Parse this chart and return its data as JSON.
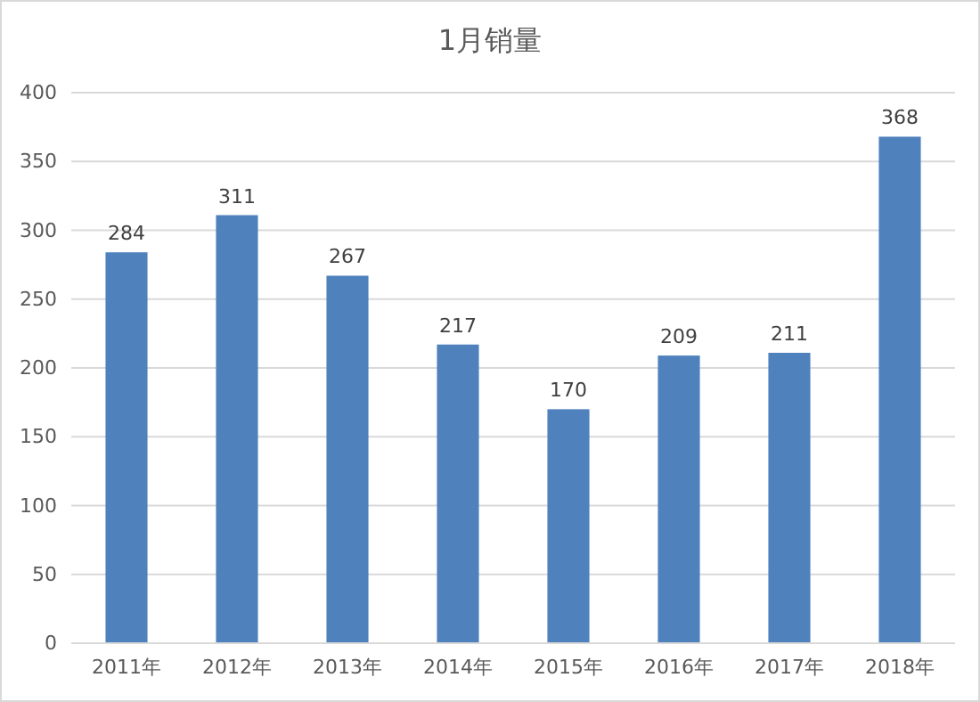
{
  "chart_data": {
    "type": "bar",
    "title": "1月销量",
    "categories": [
      "2011年",
      "2012年",
      "2013年",
      "2014年",
      "2015年",
      "2016年",
      "2017年",
      "2018年"
    ],
    "values": [
      284,
      311,
      267,
      217,
      170,
      209,
      211,
      368
    ],
    "color": "#4f81bd",
    "ylim": [
      0,
      400
    ],
    "yticks": [
      0,
      50,
      100,
      150,
      200,
      250,
      300,
      350,
      400
    ],
    "grid": "y",
    "data_labels": true
  }
}
